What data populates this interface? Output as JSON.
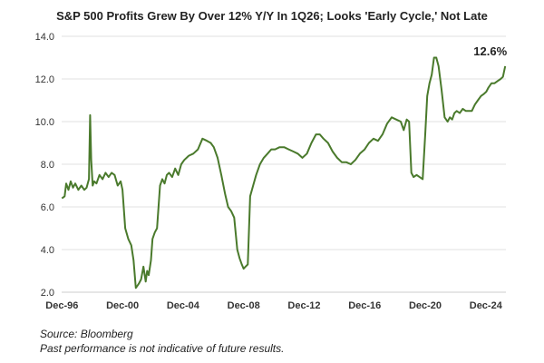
{
  "chart_data": {
    "type": "line",
    "title": "S&P 500 Profits Grew By Over 12% Y/Y In 1Q26; Looks 'Early Cycle,' Not Late",
    "xlabel": "",
    "ylabel": "",
    "ylim": [
      2.0,
      14.0
    ],
    "xlim": [
      1996.9,
      2026.25
    ],
    "grid": "horizontal",
    "legend": "none",
    "y_ticks": [
      "2.0",
      "4.0",
      "6.0",
      "8.0",
      "10.0",
      "12.0",
      "14.0"
    ],
    "x_ticks": [
      {
        "label": "Dec-96",
        "x": 1996.92
      },
      {
        "label": "Dec-00",
        "x": 2000.92
      },
      {
        "label": "Dec-04",
        "x": 2004.92
      },
      {
        "label": "Dec-08",
        "x": 2008.92
      },
      {
        "label": "Dec-12",
        "x": 2012.92
      },
      {
        "label": "Dec-16",
        "x": 2016.92
      },
      {
        "label": "Dec-20",
        "x": 2020.92
      },
      {
        "label": "Dec-24",
        "x": 2024.92
      }
    ],
    "annotation": {
      "text": "12.6%",
      "x": 2026.2,
      "y": 12.6
    },
    "series": [
      {
        "color": "#4a7a2c",
        "x": [
          1996.92,
          1997.1,
          1997.2,
          1997.35,
          1997.5,
          1997.65,
          1997.8,
          1998.0,
          1998.2,
          1998.4,
          1998.55,
          1998.7,
          1998.78,
          1998.85,
          1998.95,
          1999.05,
          1999.2,
          1999.4,
          1999.6,
          1999.8,
          2000.0,
          2000.2,
          2000.4,
          2000.6,
          2000.8,
          2000.92,
          2001.1,
          2001.3,
          2001.5,
          2001.65,
          2001.8,
          2001.9,
          2002.0,
          2002.15,
          2002.3,
          2002.45,
          2002.55,
          2002.65,
          2002.8,
          2002.9,
          2003.05,
          2003.2,
          2003.4,
          2003.55,
          2003.7,
          2003.85,
          2004.0,
          2004.2,
          2004.4,
          2004.6,
          2004.8,
          2005.0,
          2005.3,
          2005.6,
          2005.9,
          2006.2,
          2006.5,
          2006.75,
          2006.95,
          2007.2,
          2007.45,
          2007.7,
          2007.9,
          2008.1,
          2008.3,
          2008.5,
          2008.65,
          2008.8,
          2008.92,
          2009.05,
          2009.2,
          2009.35,
          2009.55,
          2009.75,
          2010.0,
          2010.25,
          2010.5,
          2010.75,
          2011.0,
          2011.3,
          2011.6,
          2011.9,
          2012.2,
          2012.5,
          2012.8,
          2013.1,
          2013.4,
          2013.7,
          2013.95,
          2014.2,
          2014.5,
          2014.8,
          2015.1,
          2015.4,
          2015.7,
          2016.0,
          2016.3,
          2016.6,
          2016.92,
          2017.2,
          2017.5,
          2017.8,
          2018.1,
          2018.4,
          2018.7,
          2019.0,
          2019.3,
          2019.5,
          2019.7,
          2019.85,
          2020.0,
          2020.15,
          2020.35,
          2020.55,
          2020.75,
          2020.92,
          2021.05,
          2021.2,
          2021.35,
          2021.5,
          2021.65,
          2021.8,
          2022.0,
          2022.2,
          2022.4,
          2022.55,
          2022.7,
          2022.85,
          2023.0,
          2023.2,
          2023.4,
          2023.6,
          2023.8,
          2024.0,
          2024.2,
          2024.4,
          2024.6,
          2024.8,
          2024.95,
          2025.1,
          2025.3,
          2025.5,
          2025.7,
          2025.9,
          2026.05,
          2026.2
        ],
        "y": [
          6.4,
          6.5,
          7.1,
          6.8,
          7.2,
          6.9,
          7.1,
          6.8,
          7.0,
          6.8,
          6.9,
          7.3,
          10.3,
          8.2,
          7.0,
          7.2,
          7.1,
          7.5,
          7.3,
          7.6,
          7.4,
          7.6,
          7.5,
          7.0,
          7.2,
          6.8,
          5.0,
          4.5,
          4.2,
          3.5,
          2.2,
          2.3,
          2.4,
          2.6,
          3.2,
          2.5,
          3.0,
          2.8,
          3.5,
          4.5,
          4.8,
          5.0,
          7.0,
          7.3,
          7.1,
          7.5,
          7.6,
          7.4,
          7.8,
          7.5,
          8.0,
          8.2,
          8.4,
          8.5,
          8.7,
          9.2,
          9.1,
          9.0,
          8.8,
          8.3,
          7.5,
          6.6,
          6.0,
          5.8,
          5.5,
          4.0,
          3.6,
          3.3,
          3.1,
          3.2,
          3.3,
          6.5,
          7.0,
          7.5,
          8.0,
          8.3,
          8.5,
          8.7,
          8.7,
          8.8,
          8.8,
          8.7,
          8.6,
          8.5,
          8.3,
          8.5,
          9.0,
          9.4,
          9.4,
          9.2,
          9.0,
          8.6,
          8.3,
          8.1,
          8.1,
          8.0,
          8.2,
          8.5,
          8.7,
          9.0,
          9.2,
          9.1,
          9.4,
          9.9,
          10.2,
          10.1,
          10.0,
          9.6,
          10.1,
          10.0,
          7.6,
          7.4,
          7.5,
          7.4,
          7.3,
          9.4,
          11.2,
          11.8,
          12.2,
          13.0,
          13.0,
          12.6,
          11.5,
          10.2,
          10.0,
          10.2,
          10.1,
          10.4,
          10.5,
          10.4,
          10.6,
          10.5,
          10.5,
          10.5,
          10.8,
          11.0,
          11.2,
          11.3,
          11.4,
          11.6,
          11.8,
          11.8,
          11.9,
          12.0,
          12.1,
          12.6
        ]
      }
    ]
  },
  "footer": {
    "source": "Source: Bloomberg",
    "disclaimer": "Past performance is not indicative of future results."
  }
}
